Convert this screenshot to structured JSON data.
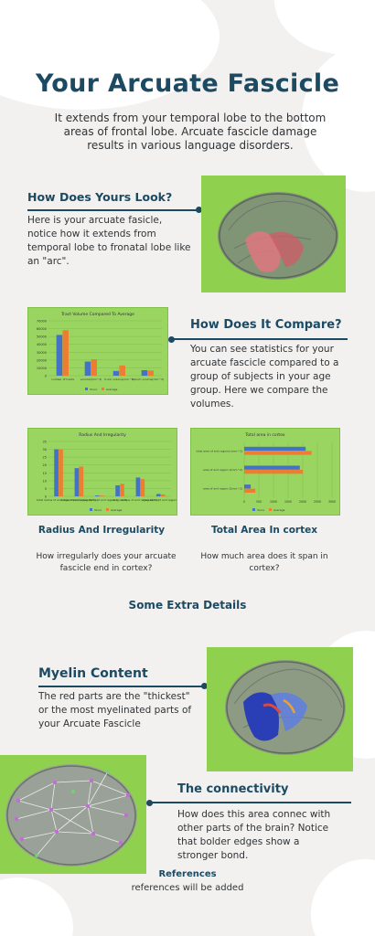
{
  "header": {
    "title": "Your Arcuate Fascicle",
    "subtitle": "It extends from your temporal lobe to the bottom areas of frontal lobe. Arcuate fascicle damage results in various language disorders."
  },
  "section_look": {
    "heading": "How Does Yours Look?",
    "text": "Here is your arcuate fasicle, notice how it extends from temporal lobe to fronatal lobe like an \"arc\"."
  },
  "section_compare": {
    "heading": "How Does It Compare?",
    "text": "You can see statistics for your arcuate fascicle compared to a group of subjects in your age group. Here we compare the volumes."
  },
  "section_radius": {
    "heading": "Radius And Irregularity",
    "text": "How irregularly does your arcuate fascicle end in cortex?"
  },
  "section_area": {
    "heading": "Total Area In cortex",
    "text": "How much area does it span in cortex?"
  },
  "extra": {
    "heading": "Some Extra Details"
  },
  "myelin": {
    "heading": "Myelin Content",
    "text": "The red parts are the \"thickest\" or the most myelinated parts of your Arcuate Fascicle"
  },
  "connectivity": {
    "heading": "The connectivity",
    "text": "How does this area connec with other parts of the brain? Notice that bolder edges show a stronger bond."
  },
  "references": {
    "heading": "References",
    "text": "references will be added"
  },
  "colors": {
    "navy": "#1c4a63",
    "green": "#8fd14f",
    "series_blue": "#4472c4",
    "series_orange": "#ed7d31"
  },
  "chart_data": [
    {
      "type": "bar",
      "title": "Tract Volume Compared To Average",
      "categories": [
        "number of tracts",
        "volume(mm^3)",
        "trunk volume(mm^3)",
        "branch volume(mm^3)"
      ],
      "series": [
        {
          "name": "Yours",
          "values": [
            52000,
            18000,
            6000,
            7000
          ]
        },
        {
          "name": "Average",
          "values": [
            58000,
            21000,
            13000,
            6500
          ]
        }
      ],
      "yticks": [
        "0",
        "10000",
        "20000",
        "30000",
        "40000",
        "50000",
        "60000",
        "70000"
      ],
      "ylim": [
        0,
        70000
      ],
      "legend": "bottom"
    },
    {
      "type": "bar",
      "title": "Radius And Irregularity",
      "categories": [
        "total radius of end region1(mm)",
        "radius of end region 2(mm)",
        "irregularity of end region 1",
        "irregularity",
        "radius of end region 2(mm)",
        "irregularity of end region 2"
      ],
      "series": [
        {
          "name": "Yours",
          "values": [
            30,
            18,
            0.5,
            7,
            12,
            1.5
          ]
        },
        {
          "name": "Average",
          "values": [
            30,
            19,
            0.5,
            8,
            11,
            1.2
          ]
        }
      ],
      "yticks": [
        "0",
        "5",
        "10",
        "15",
        "20",
        "25",
        "30",
        "35"
      ],
      "ylim": [
        0,
        35
      ],
      "legend": "bottom"
    },
    {
      "type": "bar",
      "title": "Total area in cortex",
      "orientation": "horizontal",
      "categories": [
        "total area of end regions (mm^2)",
        "area of end region 1(mm^2)",
        "area of end region 2(mm^2)"
      ],
      "series": [
        {
          "name": "Yours",
          "values": [
            2100,
            1900,
            220
          ]
        },
        {
          "name": "Average",
          "values": [
            2300,
            2000,
            380
          ]
        }
      ],
      "xticks": [
        "0",
        "500",
        "1000",
        "1500",
        "2000",
        "2500",
        "3000"
      ],
      "xlim": [
        0,
        3000
      ],
      "legend": "bottom"
    }
  ]
}
